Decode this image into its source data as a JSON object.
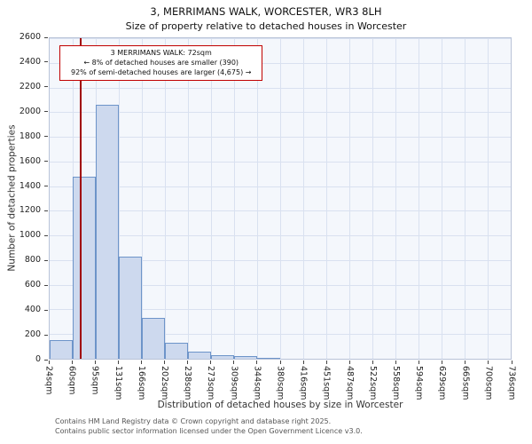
{
  "chart_data": {
    "type": "bar",
    "title": "3, MERRIMANS WALK, WORCESTER, WR3 8LH",
    "subtitle": "Size of property relative to detached houses in Worcester",
    "xlabel": "Distribution of detached houses by size in Worcester",
    "ylabel": "Number of detached properties",
    "ylim": [
      0,
      2600
    ],
    "ytick_step": 200,
    "x_min": 24,
    "x_max": 736,
    "grid": true,
    "legend": false,
    "bin_edge_labels": [
      "24sqm",
      "60sqm",
      "95sqm",
      "131sqm",
      "166sqm",
      "202sqm",
      "238sqm",
      "273sqm",
      "309sqm",
      "344sqm",
      "380sqm",
      "416sqm",
      "451sqm",
      "487sqm",
      "522sqm",
      "558sqm",
      "594sqm",
      "629sqm",
      "665sqm",
      "700sqm",
      "736sqm"
    ],
    "values": [
      150,
      1480,
      2060,
      830,
      330,
      130,
      60,
      30,
      20,
      10,
      0,
      0,
      0,
      0,
      0,
      0,
      0,
      0,
      0,
      0
    ],
    "marker": {
      "value": 72,
      "color": "#a00000"
    },
    "annotation": {
      "lines": [
        "3 MERRIMANS WALK: 72sqm",
        "← 8% of detached houses are smaller (390)",
        "92% of semi-detached houses are larger (4,675) →"
      ],
      "border_color": "#c00000"
    },
    "colors": {
      "bar_fill": "#cdd9ee",
      "bar_edge": "#6d94c9",
      "grid": "#d9e1f0",
      "plot_bg": "#f4f7fc"
    }
  },
  "footer": {
    "line1": "Contains HM Land Registry data © Crown copyright and database right 2025.",
    "line2": "Contains public sector information licensed under the Open Government Licence v3.0."
  }
}
